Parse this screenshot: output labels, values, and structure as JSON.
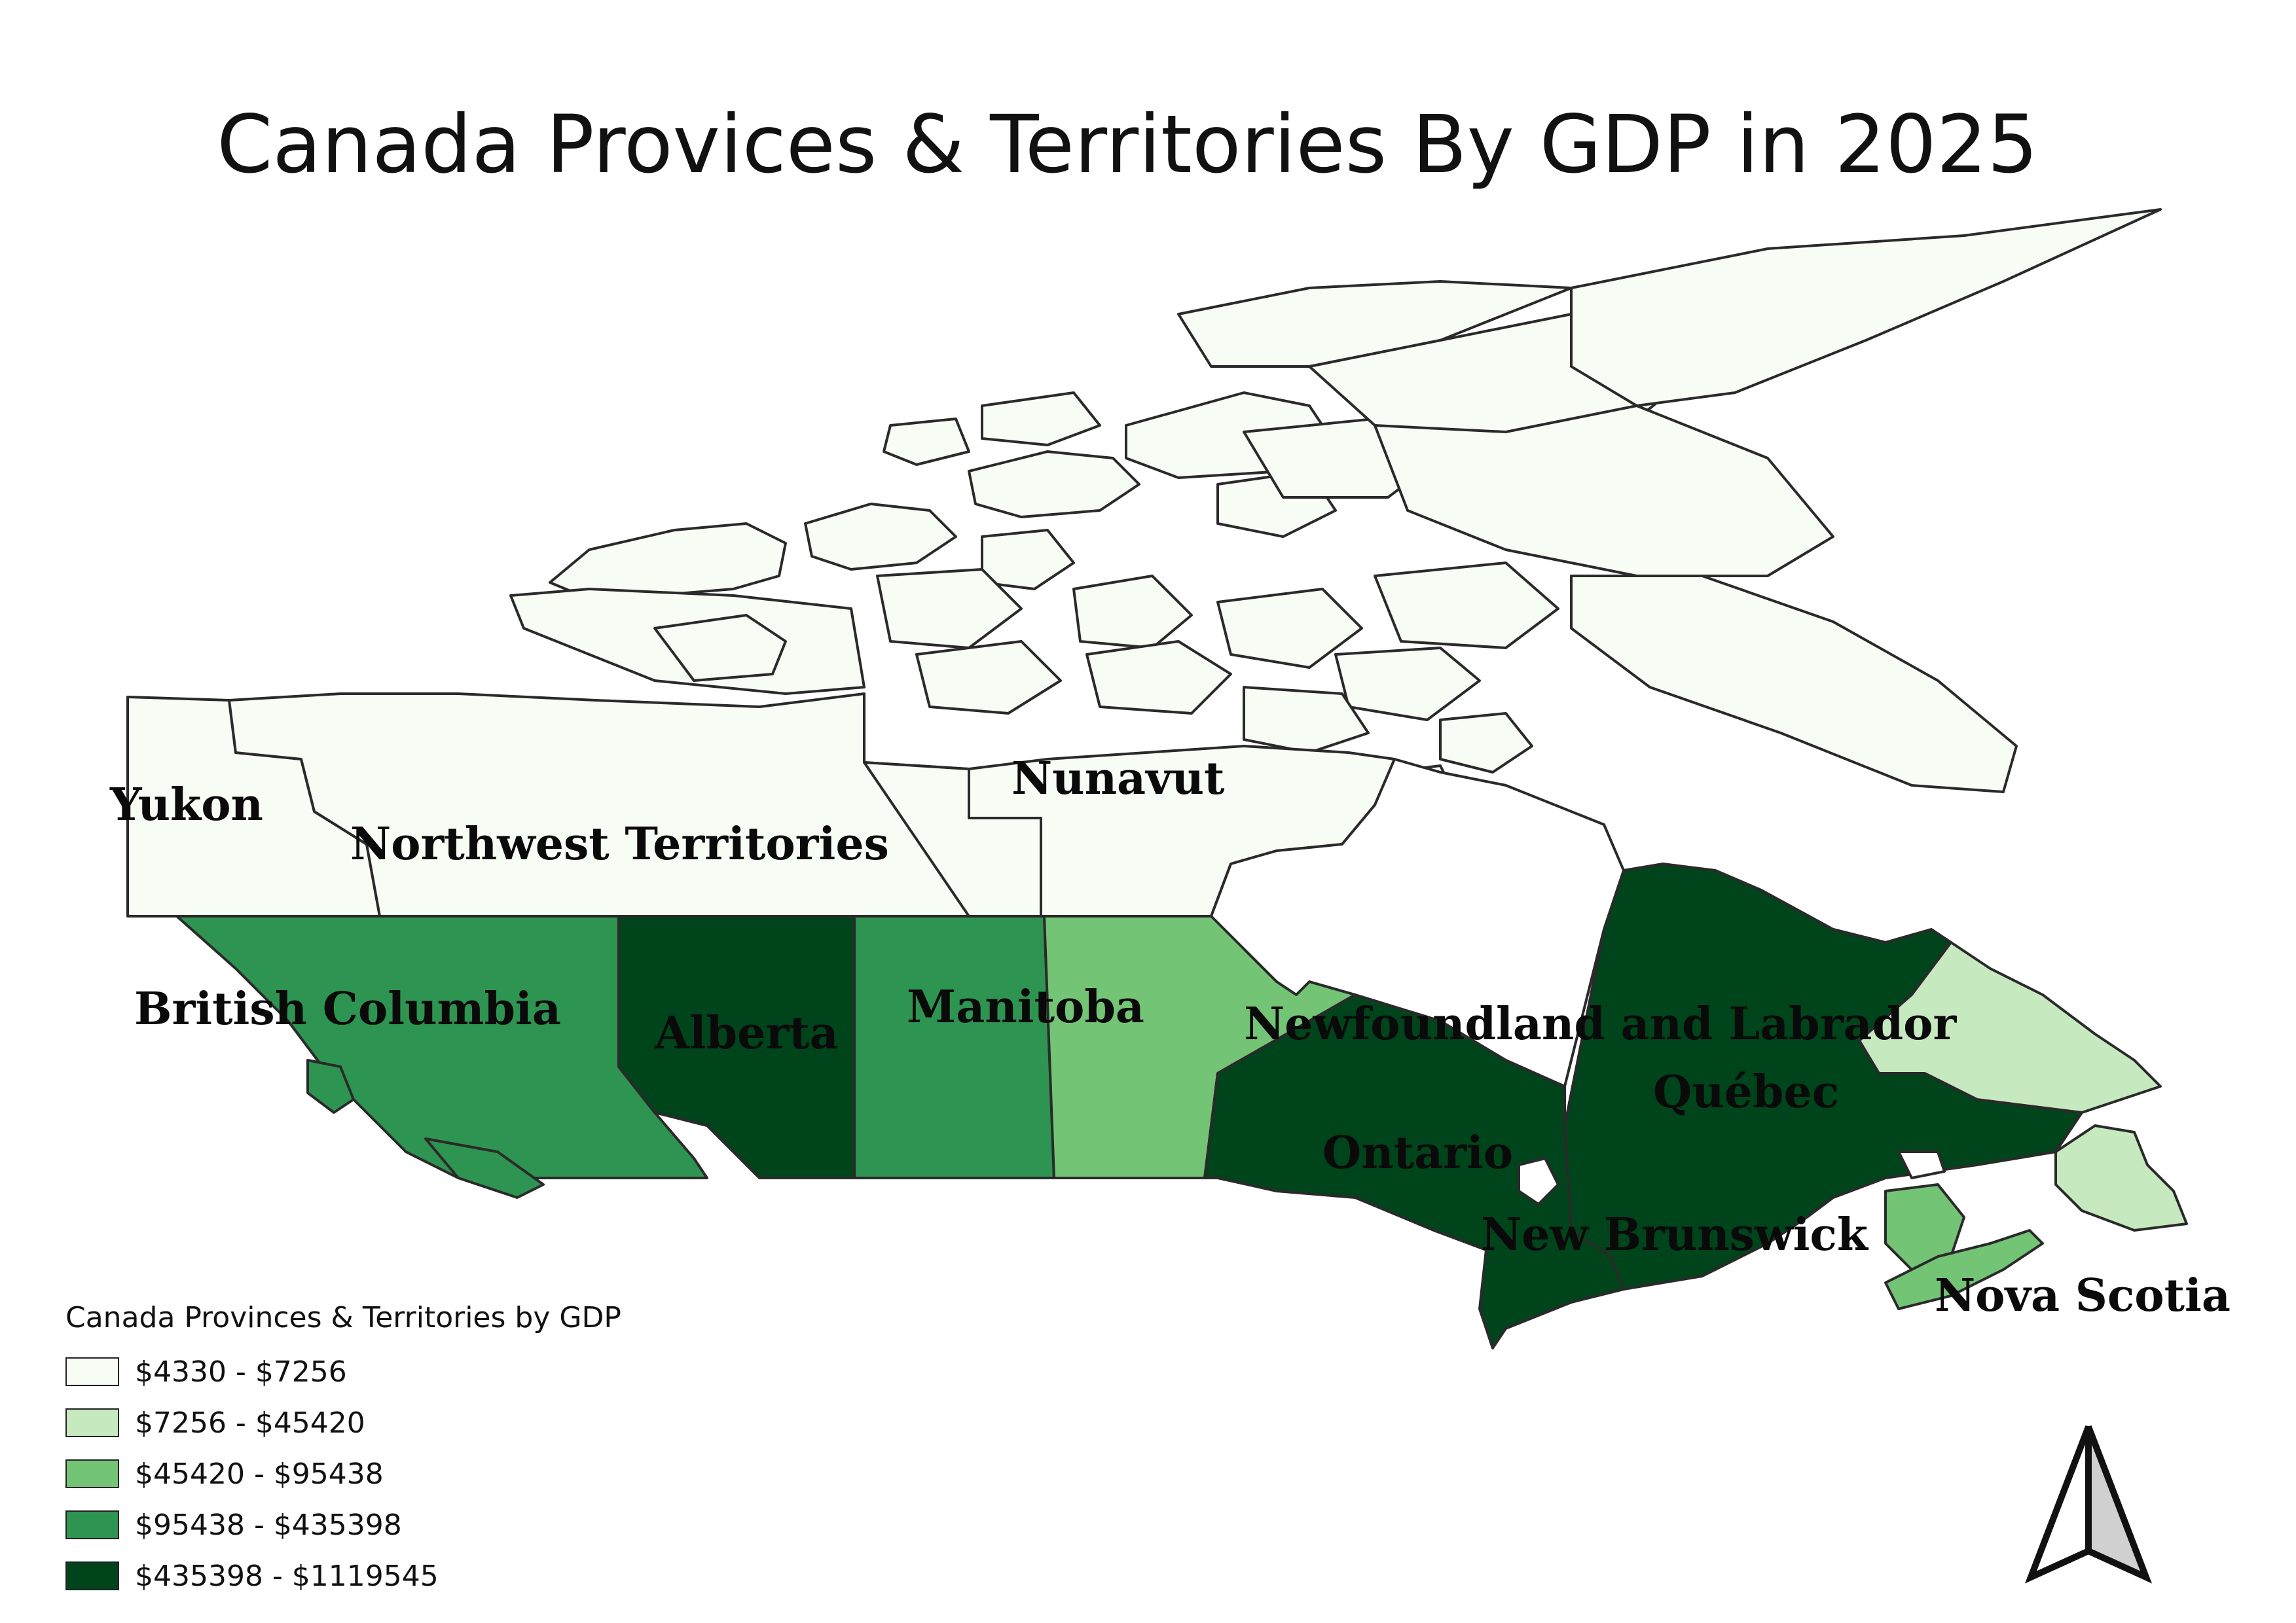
{
  "title": "Canada Provices & Territories By GDP in 2025",
  "legend": {
    "title": "Canada Provinces & Territories by GDP",
    "items": [
      {
        "label": "$4330 - $7256",
        "color": "#f7fcf5"
      },
      {
        "label": "$7256 - $45420",
        "color": "#c7e9c0"
      },
      {
        "label": "$45420 - $95438",
        "color": "#74c476"
      },
      {
        "label": "$95438 - $435398",
        "color": "#2e9451"
      },
      {
        "label": "$435398 - $1119545",
        "color": "#00441b"
      }
    ]
  },
  "regions": [
    {
      "name": "Yukon",
      "color": "#f7fcf5"
    },
    {
      "name": "Northwest Territories",
      "color": "#f7fcf5"
    },
    {
      "name": "Nunavut",
      "color": "#f7fcf5"
    },
    {
      "name": "British Columbia",
      "color": "#2e9451"
    },
    {
      "name": "Alberta",
      "color": "#00441b"
    },
    {
      "name": "Manitoba",
      "color": "#2e9451"
    },
    {
      "name": "Newfoundland and Labrador",
      "color": "#c7e9c0"
    },
    {
      "name": "Québec",
      "color": "#00441b"
    },
    {
      "name": "Ontario",
      "color": "#00441b"
    },
    {
      "name": "New Brunswick",
      "color": "#74c476"
    },
    {
      "name": "Nova Scotia",
      "color": "#74c476"
    }
  ],
  "north_arrow": {
    "icon": "north-arrow-icon"
  }
}
